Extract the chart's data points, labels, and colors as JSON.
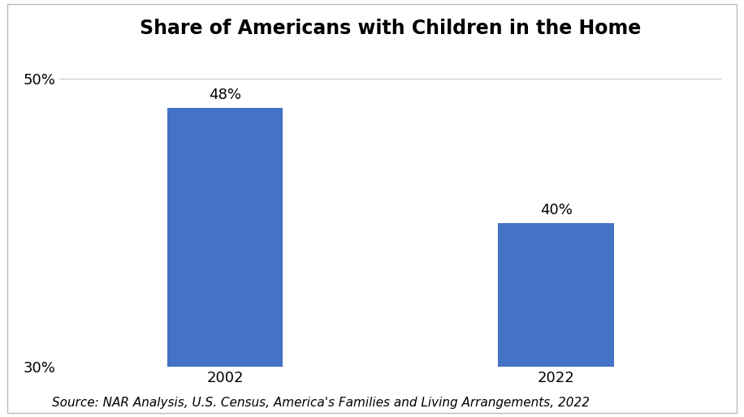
{
  "title": "Share of Americans with Children in the Home",
  "categories": [
    "2002",
    "2022"
  ],
  "values": [
    48,
    40
  ],
  "bar_color": "#4472C4",
  "ylim": [
    30,
    52
  ],
  "yticks": [
    30,
    50
  ],
  "ytick_labels": [
    "30%",
    "50%"
  ],
  "value_labels": [
    "48%",
    "40%"
  ],
  "source_text": "Source: NAR Analysis, U.S. Census, America's Families and Living Arrangements, 2022",
  "title_fontsize": 17,
  "tick_fontsize": 13,
  "annotation_fontsize": 13,
  "source_fontsize": 11,
  "bar_width": 0.35,
  "background_color": "#ffffff",
  "grid_color": "#cccccc",
  "x_positions": [
    1,
    2
  ],
  "xlim": [
    0.5,
    2.5
  ]
}
